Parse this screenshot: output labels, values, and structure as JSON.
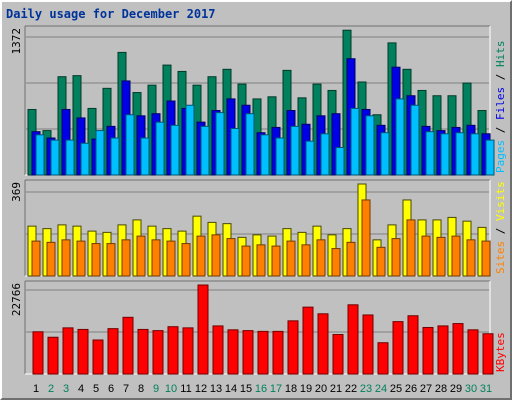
{
  "title": "Daily usage for December 2017",
  "colors": {
    "hits": "#00805c",
    "files": "#0000e6",
    "pages": "#00bfff",
    "visits": "#ffff00",
    "sites": "#ff8000",
    "kbytes": "#ff0000",
    "panel": "#c0c0c0",
    "weekend_day": "#00805c",
    "weekday_day": "#000000"
  },
  "chart_data": [
    {
      "type": "bar",
      "panel": "hits-files-pages",
      "categories": [
        "1",
        "2",
        "3",
        "4",
        "5",
        "6",
        "7",
        "8",
        "9",
        "10",
        "11",
        "12",
        "13",
        "14",
        "15",
        "16",
        "17",
        "18",
        "19",
        "20",
        "21",
        "22",
        "23",
        "24",
        "25",
        "26",
        "27",
        "28",
        "29",
        "30",
        "31"
      ],
      "y_axis_max_label": "1372",
      "right_label_parts": [
        "Pages",
        " / ",
        "Files",
        " / ",
        "Hits"
      ],
      "series": [
        {
          "name": "Hits",
          "values": [
            620,
            420,
            930,
            940,
            630,
            820,
            1160,
            780,
            850,
            1040,
            980,
            850,
            930,
            1000,
            860,
            720,
            740,
            990,
            730,
            860,
            800,
            1370,
            880,
            570,
            1250,
            1000,
            800,
            750,
            750,
            870,
            610
          ]
        },
        {
          "name": "Files",
          "values": [
            410,
            350,
            620,
            540,
            340,
            460,
            890,
            560,
            580,
            700,
            630,
            500,
            610,
            720,
            660,
            400,
            450,
            610,
            480,
            560,
            580,
            1100,
            620,
            470,
            1020,
            750,
            460,
            420,
            450,
            470,
            390
          ]
        },
        {
          "name": "Pages",
          "values": [
            380,
            330,
            330,
            300,
            420,
            350,
            570,
            350,
            500,
            470,
            660,
            460,
            590,
            440,
            580,
            380,
            350,
            460,
            320,
            390,
            260,
            630,
            560,
            400,
            720,
            660,
            410,
            390,
            400,
            390,
            330
          ]
        }
      ],
      "ylim": [
        0,
        1372
      ]
    },
    {
      "type": "bar",
      "panel": "visits-sites",
      "categories": [
        "1",
        "2",
        "3",
        "4",
        "5",
        "6",
        "7",
        "8",
        "9",
        "10",
        "11",
        "12",
        "13",
        "14",
        "15",
        "16",
        "17",
        "18",
        "19",
        "20",
        "21",
        "22",
        "23",
        "24",
        "25",
        "26",
        "27",
        "28",
        "29",
        "30",
        "31"
      ],
      "y_axis_max_label": "369",
      "right_label_parts": [
        "Sites",
        " / ",
        "Visits"
      ],
      "series": [
        {
          "name": "Visits",
          "values": [
            200,
            190,
            205,
            200,
            180,
            175,
            205,
            225,
            200,
            190,
            180,
            240,
            215,
            210,
            155,
            165,
            160,
            190,
            175,
            200,
            165,
            190,
            369,
            145,
            205,
            305,
            225,
            225,
            235,
            220,
            195
          ]
        },
        {
          "name": "Sites",
          "values": [
            140,
            135,
            145,
            140,
            130,
            130,
            145,
            160,
            145,
            140,
            130,
            160,
            165,
            150,
            120,
            125,
            120,
            140,
            125,
            145,
            110,
            135,
            305,
            115,
            150,
            225,
            160,
            155,
            160,
            145,
            140
          ]
        }
      ],
      "ylim": [
        0,
        369
      ]
    },
    {
      "type": "bar",
      "panel": "kbytes",
      "categories": [
        "1",
        "2",
        "3",
        "4",
        "5",
        "6",
        "7",
        "8",
        "9",
        "10",
        "11",
        "12",
        "13",
        "14",
        "15",
        "16",
        "17",
        "18",
        "19",
        "20",
        "21",
        "22",
        "23",
        "24",
        "25",
        "26",
        "27",
        "28",
        "29",
        "30",
        "31"
      ],
      "y_axis_max_label": "22766",
      "right_label_parts": [
        "KBytes"
      ],
      "series": [
        {
          "name": "KBytes",
          "values": [
            10800,
            9400,
            11800,
            11400,
            8700,
            11600,
            14500,
            11400,
            11100,
            12100,
            11800,
            22766,
            12300,
            11300,
            11100,
            10900,
            10900,
            13600,
            17100,
            15400,
            10100,
            17700,
            15100,
            8000,
            13400,
            14900,
            11900,
            12300,
            12900,
            11300,
            10300
          ]
        }
      ],
      "ylim": [
        0,
        22766
      ]
    }
  ],
  "x_axis_days": [
    "1",
    "2",
    "3",
    "4",
    "5",
    "6",
    "7",
    "8",
    "9",
    "10",
    "11",
    "12",
    "13",
    "14",
    "15",
    "16",
    "17",
    "18",
    "19",
    "20",
    "21",
    "22",
    "23",
    "24",
    "25",
    "26",
    "27",
    "28",
    "29",
    "30",
    "31"
  ],
  "weekend_days": [
    "2",
    "3",
    "9",
    "10",
    "16",
    "17",
    "23",
    "24",
    "30",
    "31"
  ]
}
